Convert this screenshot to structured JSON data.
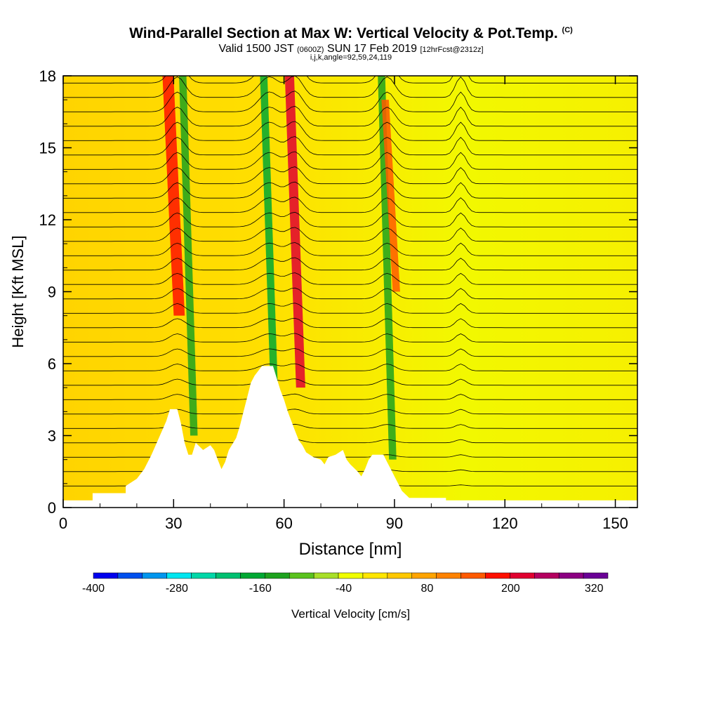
{
  "title": "Wind-Parallel Section at Max W: Vertical Velocity & Pot.Temp.",
  "title_mark": "(C)",
  "subtitle_main_1": "Valid 1500 JST",
  "subtitle_small_1": "(0600Z)",
  "subtitle_main_2": "SUN 17 Feb 2019",
  "subtitle_small_2": "[12hrFcst@2312z]",
  "subline": "i,j,k,angle=92,59,24,119",
  "chart_data": {
    "type": "heatmap",
    "title": "Wind-Parallel Section at Max W: Vertical Velocity & Pot.Temp.",
    "xlabel": "Distance [nm]",
    "ylabel": "Height [Kft MSL]",
    "xlim": [
      0,
      156
    ],
    "ylim": [
      0,
      18
    ],
    "x_ticks": [
      "0",
      "30",
      "60",
      "90",
      "120",
      "150"
    ],
    "y_ticks": [
      "0",
      "3",
      "6",
      "9",
      "12",
      "15",
      "18"
    ],
    "colorbar": {
      "label": "Vertical Velocity [cm/s]",
      "tick_labels": [
        "-400",
        "-280",
        "-160",
        "-40",
        "80",
        "200",
        "320"
      ],
      "tick_values": [
        -400,
        -280,
        -160,
        -40,
        80,
        200,
        320
      ],
      "range": [
        -400,
        340
      ],
      "colors": [
        "#0000ee",
        "#0050ee",
        "#0096ee",
        "#00e6f0",
        "#00d7a8",
        "#00c071",
        "#00a833",
        "#1ea21e",
        "#5ac21e",
        "#a8df28",
        "#f0ff00",
        "#ffe600",
        "#ffc800",
        "#ffa400",
        "#ff8200",
        "#ff5a00",
        "#ff1000",
        "#e00030",
        "#b40060",
        "#8c0082",
        "#6a0096"
      ]
    },
    "terrain": [
      [
        0,
        0.3
      ],
      [
        8,
        0.3
      ],
      [
        8,
        0.6
      ],
      [
        17,
        0.6
      ],
      [
        17,
        0.9
      ],
      [
        20,
        1.2
      ],
      [
        22,
        1.6
      ],
      [
        24,
        2.2
      ],
      [
        26,
        2.9
      ],
      [
        28,
        3.6
      ],
      [
        29,
        4.1
      ],
      [
        31,
        4.1
      ],
      [
        32,
        3.5
      ],
      [
        33,
        2.7
      ],
      [
        34,
        2.2
      ],
      [
        35,
        2.2
      ],
      [
        36,
        2.7
      ],
      [
        38,
        2.4
      ],
      [
        40,
        2.6
      ],
      [
        41,
        2.4
      ],
      [
        42,
        2.0
      ],
      [
        43,
        1.6
      ],
      [
        44,
        1.9
      ],
      [
        45,
        2.4
      ],
      [
        47,
        2.9
      ],
      [
        48,
        3.4
      ],
      [
        49,
        4.0
      ],
      [
        50,
        4.6
      ],
      [
        51,
        5.2
      ],
      [
        52,
        5.5
      ],
      [
        54,
        5.9
      ],
      [
        57,
        5.9
      ],
      [
        58,
        5.4
      ],
      [
        59,
        4.9
      ],
      [
        60,
        4.5
      ],
      [
        61,
        4.0
      ],
      [
        62,
        3.6
      ],
      [
        63,
        3.2
      ],
      [
        64,
        2.8
      ],
      [
        65,
        2.6
      ],
      [
        66,
        2.3
      ],
      [
        68,
        2.1
      ],
      [
        70,
        2.0
      ],
      [
        71,
        1.8
      ],
      [
        72,
        2.1
      ],
      [
        74,
        2.2
      ],
      [
        76,
        2.4
      ],
      [
        77,
        2.0
      ],
      [
        78,
        1.8
      ],
      [
        80,
        1.5
      ],
      [
        81,
        1.3
      ],
      [
        82,
        1.6
      ],
      [
        83,
        2.0
      ],
      [
        84,
        2.2
      ],
      [
        87,
        2.2
      ],
      [
        88,
        1.9
      ],
      [
        89,
        1.6
      ],
      [
        90,
        1.3
      ],
      [
        91,
        1.0
      ],
      [
        92,
        0.7
      ],
      [
        94,
        0.4
      ],
      [
        104,
        0.4
      ],
      [
        104,
        0.3
      ],
      [
        156,
        0.3
      ]
    ],
    "velocity_bands": [
      {
        "x": 30,
        "y1": 8,
        "y2": 18,
        "w": 3,
        "value": 180
      },
      {
        "x": 34,
        "y1": 3,
        "y2": 18,
        "w": 2,
        "value": -140
      },
      {
        "x": 56,
        "y1": 4,
        "y2": 18,
        "w": 2,
        "value": -180
      },
      {
        "x": 63,
        "y1": 5,
        "y2": 18,
        "w": 2.5,
        "value": 220
      },
      {
        "x": 88,
        "y1": 2,
        "y2": 18,
        "w": 2,
        "value": -150
      },
      {
        "x": 89,
        "y1": 9,
        "y2": 17,
        "w": 2,
        "value": 160
      }
    ]
  }
}
